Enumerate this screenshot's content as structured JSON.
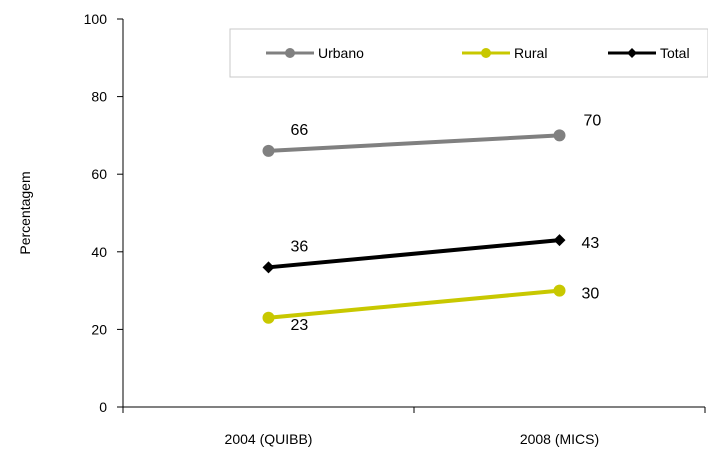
{
  "chart_data": {
    "type": "line",
    "categories": [
      "2004 (QUIBB)",
      "2008 (MICS)"
    ],
    "ylabel": "Percentagem",
    "ylim": [
      0,
      100
    ],
    "yticks": [
      0,
      20,
      40,
      60,
      80,
      100
    ],
    "grid": false,
    "legend_position": "top-right",
    "series": [
      {
        "name": "Urbano",
        "values": [
          66,
          70
        ],
        "color": "#808080",
        "marker": "circle"
      },
      {
        "name": "Rural",
        "values": [
          23,
          30
        ],
        "color": "#c8c800",
        "marker": "circle"
      },
      {
        "name": "Total",
        "values": [
          36,
          43
        ],
        "color": "#000000",
        "marker": "diamond"
      }
    ]
  }
}
